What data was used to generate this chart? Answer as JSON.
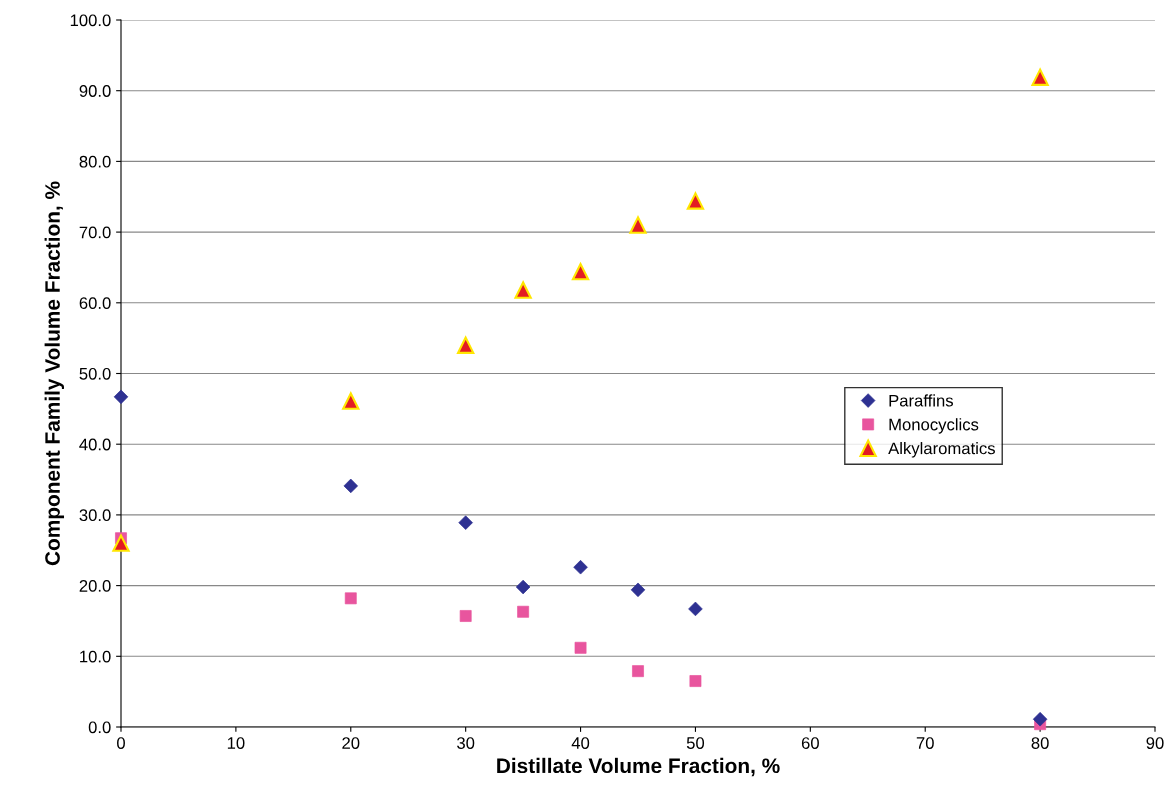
{
  "chart_data": {
    "type": "scatter",
    "xlabel": "Distillate Volume Fraction, %",
    "ylabel": "Component Family Volume Fraction, %",
    "xlim": [
      0,
      90
    ],
    "xticks": [
      0,
      10,
      20,
      30,
      40,
      50,
      60,
      70,
      80,
      90
    ],
    "ylim": [
      0,
      100
    ],
    "yticks": [
      {
        "value": 0,
        "label": "0.0"
      },
      {
        "value": 10,
        "label": "10.0"
      },
      {
        "value": 20,
        "label": "20.0"
      },
      {
        "value": 30,
        "label": "30.0"
      },
      {
        "value": 40,
        "label": "40.0"
      },
      {
        "value": 50,
        "label": "50.0"
      },
      {
        "value": 60,
        "label": "60.0"
      },
      {
        "value": 70,
        "label": "70.0"
      },
      {
        "value": 80,
        "label": "80.0"
      },
      {
        "value": 90,
        "label": "90.0"
      },
      {
        "value": 100,
        "label": "100.0"
      }
    ],
    "grid": "y",
    "legend": "right",
    "x": [
      0,
      20,
      30,
      35,
      40,
      45,
      50,
      80
    ],
    "series": [
      {
        "name": "Paraffins",
        "color": "#2e3192",
        "marker": "diamond",
        "values": [
          46.7,
          34.1,
          28.9,
          19.8,
          22.6,
          19.4,
          16.7,
          1.1
        ]
      },
      {
        "name": "Monocyclics",
        "color": "#e8559e",
        "marker": "square",
        "values": [
          26.7,
          18.2,
          15.7,
          16.3,
          11.2,
          7.9,
          6.5,
          0.4
        ]
      },
      {
        "name": "Alkylaromatics",
        "color": "#e31b23",
        "marker": "triangle",
        "values": [
          26.0,
          46.1,
          54.0,
          61.8,
          64.4,
          71.0,
          74.4,
          91.9
        ]
      }
    ]
  }
}
